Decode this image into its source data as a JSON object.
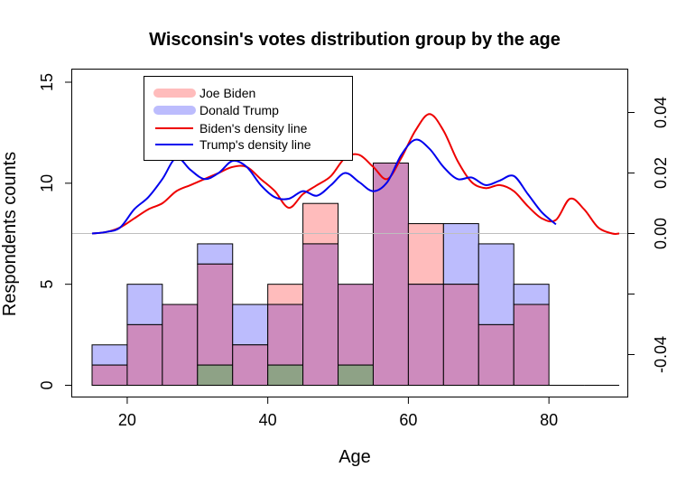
{
  "chart_data": {
    "type": "bar",
    "title": "Wisconsin's votes distribution group by the age",
    "xlabel": "Age",
    "ylabel": "Respondents counts",
    "xlim": [
      15,
      90
    ],
    "ylim": [
      0,
      15
    ],
    "y2lim": [
      -0.0478,
      0.0478
    ],
    "x_ticks": [
      20,
      40,
      60,
      80
    ],
    "y_ticks": [
      0,
      5,
      10,
      15
    ],
    "y2_ticks": [
      -0.04,
      -0.02,
      0.0,
      0.02,
      0.04
    ],
    "y2_tick_labels": [
      "-0.04",
      "",
      "0.00",
      "0.02",
      "0.04"
    ],
    "bin_edges": [
      15,
      20,
      25,
      30,
      35,
      40,
      45,
      50,
      55,
      60,
      65,
      70,
      75,
      80,
      85,
      90
    ],
    "series": [
      {
        "name": "Joe Biden",
        "values": [
          1,
          3,
          4,
          6,
          2,
          5,
          9,
          5,
          11,
          8,
          5,
          3,
          4,
          0,
          0
        ],
        "color": "#ffbcbc"
      },
      {
        "name": "Donald Trump",
        "values": [
          2,
          5,
          4,
          7,
          4,
          4,
          7,
          5,
          11,
          5,
          8,
          7,
          5,
          0,
          0
        ],
        "color": "#bcbcfd"
      }
    ],
    "overlap_color": "#cd8bbd",
    "low_overlap_color": "#8ea286",
    "low_overlap_bins": [
      3,
      5,
      7
    ],
    "low_overlap_value": 1,
    "density_lines": [
      {
        "name": "Biden's density line",
        "color": "#ee0000",
        "x": [
          15,
          17,
          19,
          21,
          23,
          25,
          27,
          29,
          31,
          33,
          35,
          37,
          39,
          41,
          43,
          45,
          47,
          49,
          51,
          53,
          55,
          57,
          59,
          61,
          63,
          65,
          67,
          69,
          71,
          73,
          75,
          77,
          79,
          81,
          83,
          85,
          87,
          89,
          90
        ],
        "y": [
          0,
          0.0005,
          0.002,
          0.005,
          0.008,
          0.01,
          0.014,
          0.016,
          0.018,
          0.02,
          0.022,
          0.022,
          0.018,
          0.014,
          0.0085,
          0.013,
          0.016,
          0.019,
          0.025,
          0.026,
          0.022,
          0.018,
          0.025,
          0.034,
          0.0395,
          0.034,
          0.024,
          0.017,
          0.015,
          0.016,
          0.014,
          0.009,
          0.005,
          0.0045,
          0.0115,
          0.008,
          0.002,
          0,
          0
        ]
      },
      {
        "name": "Trump's density line",
        "color": "#0000ee",
        "x": [
          15,
          17,
          19,
          21,
          23,
          25,
          27,
          29,
          31,
          33,
          35,
          37,
          39,
          41,
          43,
          45,
          47,
          49,
          51,
          53,
          55,
          57,
          59,
          61,
          63,
          65,
          67,
          69,
          71,
          73,
          75,
          77,
          79,
          81
        ],
        "y": [
          0,
          0.0005,
          0.002,
          0.008,
          0.012,
          0.018,
          0.025,
          0.021,
          0.018,
          0.02,
          0.024,
          0.022,
          0.016,
          0.012,
          0.0115,
          0.014,
          0.0125,
          0.016,
          0.02,
          0.017,
          0.014,
          0.017,
          0.026,
          0.031,
          0.028,
          0.022,
          0.018,
          0.0185,
          0.016,
          0.0175,
          0.019,
          0.013,
          0.007,
          0.003
        ]
      }
    ],
    "legend": {
      "position": "top-left",
      "entries": [
        "Joe Biden",
        "Donald Trump",
        "Biden's density line",
        "Trump's density line"
      ]
    },
    "zero_line_color": "#bebebe"
  }
}
